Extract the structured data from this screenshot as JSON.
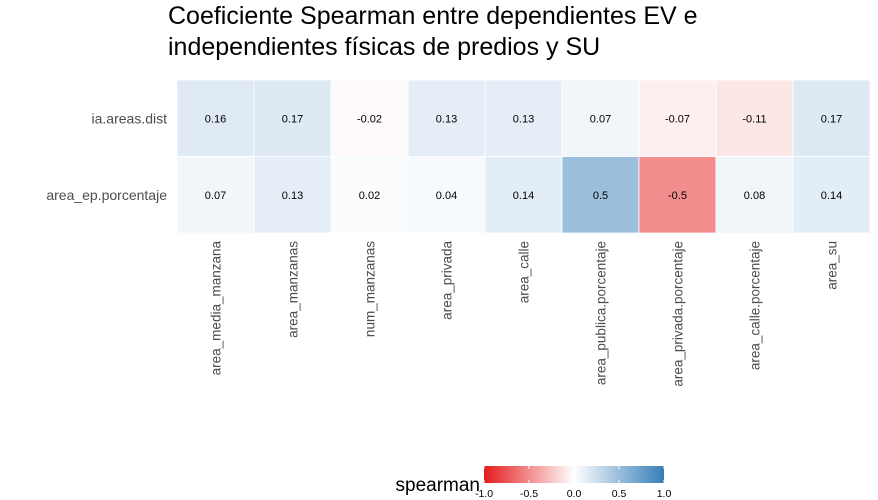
{
  "chart_data": {
    "type": "heatmap",
    "title": "Coeficiente Spearman entre dependientes EV e independientes físicas de predios y SU",
    "title_lines": [
      "Coeficiente Spearman entre dependientes EV e",
      "independientes físicas de predios y SU"
    ],
    "xlabel": "",
    "ylabel": "",
    "columns": [
      "area_media_manzana",
      "area_manzanas",
      "num_manzanas",
      "area_privada",
      "area_calle",
      "area_publica.porcentaje",
      "area_privada.porcentaje",
      "area_calle.porcentaje",
      "area_su"
    ],
    "rows": [
      "ia.areas.dist",
      "area_ep.porcentaje"
    ],
    "values": [
      [
        0.16,
        0.17,
        -0.02,
        0.13,
        0.13,
        0.07,
        -0.07,
        -0.11,
        0.17
      ],
      [
        0.07,
        0.13,
        0.02,
        0.04,
        0.14,
        0.5,
        -0.5,
        0.08,
        0.14
      ]
    ],
    "value_labels": [
      [
        "0.16",
        "0.17",
        "-0.02",
        "0.13",
        "0.13",
        "0.07",
        "-0.07",
        "-0.11",
        "0.17"
      ],
      [
        "0.07",
        "0.13",
        "0.02",
        "0.04",
        "0.14",
        "0.5",
        "-0.5",
        "0.08",
        "0.14"
      ]
    ],
    "legend": {
      "title": "spearman",
      "placement": "bottom",
      "range": [
        -1,
        1
      ],
      "ticks": [
        "-1.0",
        "-0.5",
        "0.0",
        "0.5",
        "1.0"
      ],
      "tick_values": [
        -1,
        -0.5,
        0,
        0.5,
        1
      ]
    },
    "colors": {
      "low": "#e41a1c",
      "mid": "#ffffff",
      "high": "#377eb8",
      "panel": "#ebebeb"
    },
    "grid": false
  }
}
